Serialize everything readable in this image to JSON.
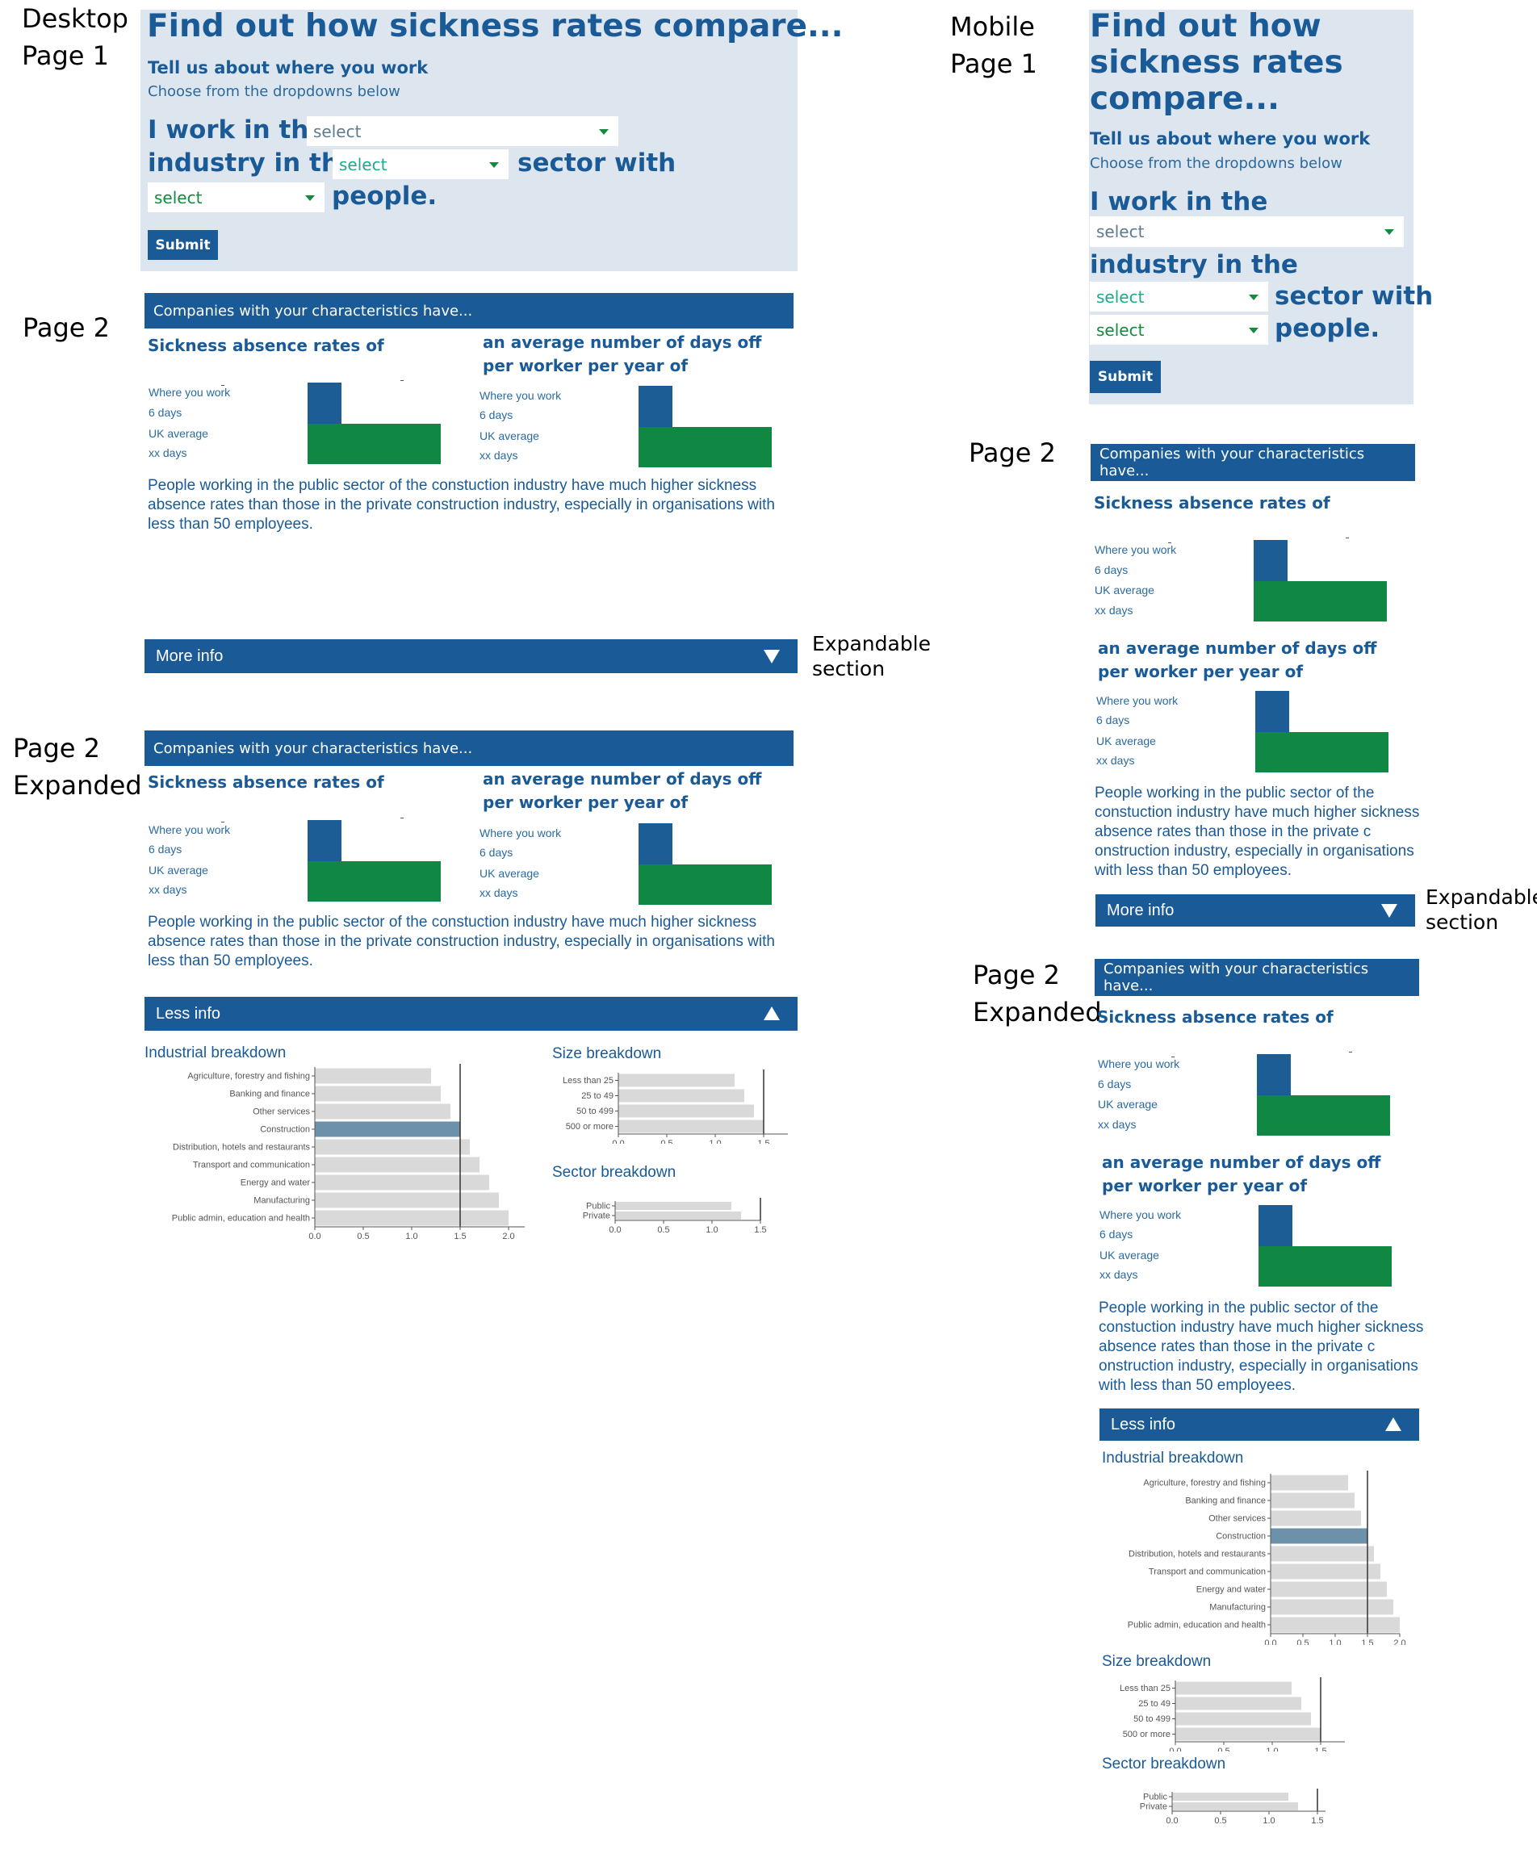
{
  "notes": {
    "desktop_page1": "Desktop\nPage 1",
    "desktop_page2": "Page 2",
    "desktop_page2_expanded": "Page 2\nExpanded",
    "mobile_page1": "Mobile\nPage 1",
    "mobile_page2": "Page 2",
    "mobile_page2_expanded": "Page 2\nExpanded",
    "expandable": "Expandable\nsection"
  },
  "form": {
    "title": "Find out how sickness rates compare...",
    "title_mobile": "Find out how\nsickness rates\ncompare...",
    "subtitle": "Tell us about where you work",
    "hint": "Choose from the dropdowns below",
    "i_work_in_the": "I work in the",
    "industry_in_the": "industry in the",
    "sector_with": "sector with",
    "people": "people.",
    "select": "select",
    "submit": "Submit"
  },
  "results": {
    "header": "Companies with your characteristics have...",
    "sickness_heading": "Sickness absence rates of",
    "days_heading": "an average number of days off\nper worker per year of",
    "where_you_work": "Where you work",
    "six_days": "6 days",
    "uk_average": "UK average",
    "xx_days": "xx days",
    "paragraph_desktop": "People working in the public sector of the constuction industry have much higher sickness\nabsence rates than those in the private construction industry, especially in  organisations with\nless than 50 employees.",
    "paragraph_mobile": "People working in the public sector of the\nconstuction industry have much higher sickness\nabsence rates than those in the private c\nonstruction industry, especially in  organisations\nwith less than 50 employees.",
    "more_info": "More info",
    "less_info": "Less info"
  },
  "colors": {
    "primary": "#1a5a96",
    "green": "#108843",
    "panel": "#dde6ef",
    "bar_grey": "#d9d9d9",
    "highlight": "#6e91ab"
  },
  "chart_data": [
    {
      "type": "bar",
      "title": "Industrial breakdown",
      "orientation": "horizontal",
      "categories": [
        "Agriculture, forestry and fishing",
        "Banking and finance",
        "Other services",
        "Construction",
        "Distribution, hotels and restaurants",
        "Transport and communication",
        "Energy and water",
        "Manufacturing",
        "Public admin, education and health"
      ],
      "values": [
        1.2,
        1.3,
        1.4,
        1.5,
        1.6,
        1.7,
        1.8,
        1.9,
        2.0
      ],
      "highlight": "Construction",
      "reference_line": 1.5,
      "xlim": [
        0,
        2.0
      ],
      "xticks": [
        "0.0",
        "0.5",
        "1.0",
        "1.5",
        "2.0"
      ]
    },
    {
      "type": "bar",
      "title": "Size breakdown",
      "orientation": "horizontal",
      "categories": [
        "Less than 25",
        "25 to 49",
        "50 to 499",
        "500 or more"
      ],
      "values": [
        1.2,
        1.3,
        1.4,
        1.5
      ],
      "reference_line": 1.5,
      "xlim": [
        0,
        1.5
      ],
      "xticks": [
        "0.0",
        "0.5",
        "1.0",
        "1.5"
      ]
    },
    {
      "type": "bar",
      "title": "Sector breakdown",
      "orientation": "horizontal",
      "categories": [
        "Public",
        "Private"
      ],
      "values": [
        1.2,
        1.3
      ],
      "reference_line": 1.5,
      "xlim": [
        0,
        1.5
      ],
      "xticks": [
        "0.0",
        "0.5",
        "1.0",
        "1.5"
      ]
    }
  ]
}
